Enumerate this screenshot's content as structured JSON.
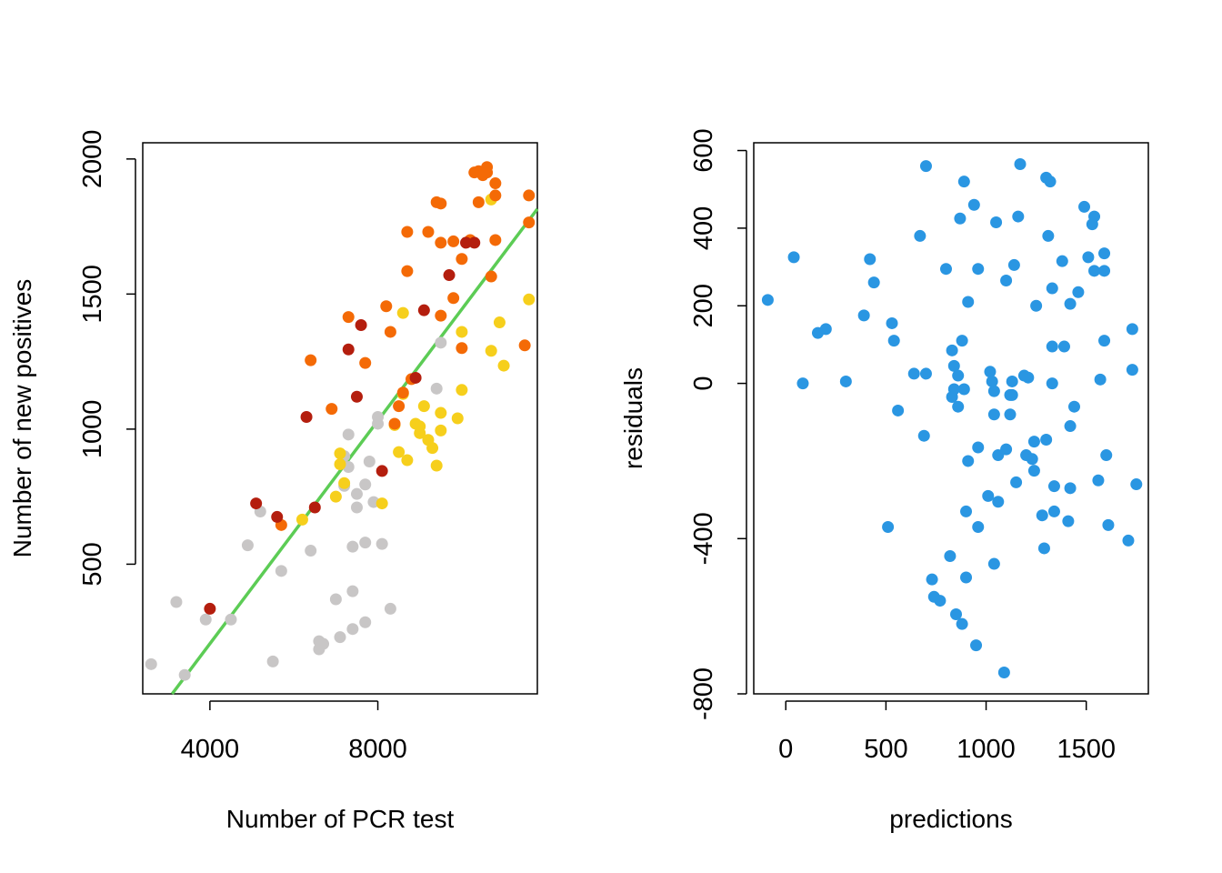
{
  "chart_data": [
    {
      "type": "scatter",
      "title": "",
      "xlabel": "Number of PCR test",
      "ylabel": "Number of new positives",
      "xlim": [
        2400,
        11800
      ],
      "ylim": [
        20,
        2060
      ],
      "x_ticks": [
        4000,
        8000
      ],
      "y_ticks": [
        500,
        1000,
        1500,
        2000
      ],
      "x_tick_labels": [
        "4000",
        "8000"
      ],
      "y_tick_labels": [
        "500",
        "1000",
        "1500",
        "2000"
      ],
      "grid": false,
      "legend": "none",
      "fit_line": {
        "color": "#5ccc55",
        "from": [
          3100,
          20
        ],
        "to": [
          11800,
          1815
        ]
      },
      "series": [
        {
          "color": "#c8c6c6",
          "points": [
            [
              2600,
              130
            ],
            [
              3200,
              360
            ],
            [
              3400,
              90
            ],
            [
              3900,
              295
            ],
            [
              4500,
              295
            ],
            [
              4900,
              570
            ],
            [
              5200,
              695
            ],
            [
              5500,
              140
            ],
            [
              5700,
              475
            ],
            [
              6400,
              550
            ],
            [
              6600,
              215
            ],
            [
              6600,
              185
            ],
            [
              6700,
              205
            ],
            [
              7000,
              370
            ],
            [
              7100,
              230
            ],
            [
              7200,
              900
            ],
            [
              7200,
              790
            ],
            [
              7300,
              980
            ],
            [
              7300,
              860
            ],
            [
              7400,
              260
            ],
            [
              7400,
              565
            ],
            [
              7400,
              400
            ],
            [
              7500,
              710
            ],
            [
              7700,
              285
            ],
            [
              7700,
              580
            ],
            [
              7700,
              795
            ],
            [
              7900,
              730
            ],
            [
              8000,
              1045
            ],
            [
              8100,
              575
            ],
            [
              8300,
              335
            ],
            [
              9400,
              1150
            ],
            [
              9500,
              1320
            ],
            [
              8000,
              1020
            ],
            [
              7800,
              880
            ],
            [
              7500,
              760
            ]
          ]
        },
        {
          "color": "#f6cf1c",
          "points": [
            [
              6200,
              665
            ],
            [
              7000,
              750
            ],
            [
              7100,
              910
            ],
            [
              7200,
              800
            ],
            [
              8100,
              725
            ],
            [
              8400,
              1015
            ],
            [
              8500,
              915
            ],
            [
              8600,
              1430
            ],
            [
              8700,
              885
            ],
            [
              8900,
              1020
            ],
            [
              9000,
              985
            ],
            [
              9000,
              1010
            ],
            [
              9100,
              1085
            ],
            [
              9300,
              930
            ],
            [
              9400,
              865
            ],
            [
              9500,
              1060
            ],
            [
              9500,
              995
            ],
            [
              9900,
              1040
            ],
            [
              10000,
              1145
            ],
            [
              10000,
              1360
            ],
            [
              10700,
              1290
            ],
            [
              10700,
              1850
            ],
            [
              10900,
              1395
            ],
            [
              11000,
              1235
            ],
            [
              11600,
              1480
            ],
            [
              8600,
              1130
            ],
            [
              9200,
              960
            ],
            [
              7100,
              870
            ]
          ]
        },
        {
          "color": "#f46a06",
          "points": [
            [
              5700,
              645
            ],
            [
              6400,
              1255
            ],
            [
              6900,
              1075
            ],
            [
              7300,
              1415
            ],
            [
              7700,
              1245
            ],
            [
              8200,
              1455
            ],
            [
              8300,
              1360
            ],
            [
              8400,
              1020
            ],
            [
              8500,
              1085
            ],
            [
              8600,
              1135
            ],
            [
              8700,
              1585
            ],
            [
              8700,
              1730
            ],
            [
              8800,
              1185
            ],
            [
              9200,
              1730
            ],
            [
              9400,
              1840
            ],
            [
              9500,
              1835
            ],
            [
              9500,
              1690
            ],
            [
              9500,
              1420
            ],
            [
              9800,
              1695
            ],
            [
              9800,
              1485
            ],
            [
              10000,
              1300
            ],
            [
              10000,
              1630
            ],
            [
              10200,
              1700
            ],
            [
              10300,
              1950
            ],
            [
              10400,
              1955
            ],
            [
              10400,
              1840
            ],
            [
              10500,
              1940
            ],
            [
              10600,
              1950
            ],
            [
              10600,
              1970
            ],
            [
              10700,
              1565
            ],
            [
              10800,
              1910
            ],
            [
              10800,
              1865
            ],
            [
              10800,
              1700
            ],
            [
              11600,
              1865
            ],
            [
              11600,
              1765
            ],
            [
              11500,
              1310
            ]
          ]
        },
        {
          "color": "#b41e0e",
          "points": [
            [
              4000,
              335
            ],
            [
              5100,
              725
            ],
            [
              5600,
              675
            ],
            [
              6300,
              1045
            ],
            [
              6500,
              710
            ],
            [
              7300,
              1295
            ],
            [
              7500,
              1120
            ],
            [
              7600,
              1385
            ],
            [
              8100,
              845
            ],
            [
              8900,
              1190
            ],
            [
              9100,
              1440
            ],
            [
              9700,
              1570
            ],
            [
              10100,
              1690
            ],
            [
              10300,
              1690
            ]
          ]
        }
      ]
    },
    {
      "type": "scatter",
      "title": "",
      "xlabel": "predictions",
      "ylabel": "residuals",
      "xlim": [
        -160,
        1810
      ],
      "ylim": [
        -800,
        620
      ],
      "x_ticks": [
        0,
        500,
        1000,
        1500
      ],
      "y_ticks": [
        -800,
        -400,
        0,
        200,
        400,
        600
      ],
      "x_tick_labels": [
        "0",
        "500",
        "1000",
        "1500"
      ],
      "y_tick_labels": [
        "-800",
        "-400",
        "0",
        "200",
        "400",
        "600"
      ],
      "grid": false,
      "legend": "none",
      "series": [
        {
          "color": "#2a96e2",
          "points": [
            [
              -90,
              215
            ],
            [
              40,
              325
            ],
            [
              85,
              0
            ],
            [
              160,
              130
            ],
            [
              200,
              140
            ],
            [
              300,
              5
            ],
            [
              390,
              175
            ],
            [
              420,
              320
            ],
            [
              440,
              260
            ],
            [
              510,
              -370
            ],
            [
              530,
              155
            ],
            [
              540,
              110
            ],
            [
              560,
              -70
            ],
            [
              640,
              25
            ],
            [
              670,
              380
            ],
            [
              690,
              -135
            ],
            [
              700,
              560
            ],
            [
              700,
              25
            ],
            [
              730,
              -505
            ],
            [
              740,
              -550
            ],
            [
              770,
              -560
            ],
            [
              800,
              295
            ],
            [
              820,
              -445
            ],
            [
              830,
              -35
            ],
            [
              830,
              85
            ],
            [
              840,
              -15
            ],
            [
              840,
              45
            ],
            [
              850,
              -595
            ],
            [
              860,
              20
            ],
            [
              860,
              -60
            ],
            [
              870,
              425
            ],
            [
              880,
              110
            ],
            [
              880,
              -620
            ],
            [
              890,
              -15
            ],
            [
              890,
              520
            ],
            [
              900,
              -330
            ],
            [
              900,
              -500
            ],
            [
              910,
              -200
            ],
            [
              910,
              210
            ],
            [
              940,
              460
            ],
            [
              950,
              -675
            ],
            [
              960,
              295
            ],
            [
              960,
              -370
            ],
            [
              960,
              -165
            ],
            [
              1010,
              -290
            ],
            [
              1020,
              30
            ],
            [
              1030,
              5
            ],
            [
              1040,
              -80
            ],
            [
              1040,
              -465
            ],
            [
              1040,
              -20
            ],
            [
              1050,
              415
            ],
            [
              1060,
              -305
            ],
            [
              1060,
              -185
            ],
            [
              1090,
              -745
            ],
            [
              1100,
              -170
            ],
            [
              1100,
              265
            ],
            [
              1120,
              -30
            ],
            [
              1120,
              -80
            ],
            [
              1130,
              -30
            ],
            [
              1130,
              5
            ],
            [
              1140,
              305
            ],
            [
              1150,
              -255
            ],
            [
              1160,
              430
            ],
            [
              1170,
              565
            ],
            [
              1190,
              20
            ],
            [
              1200,
              -185
            ],
            [
              1210,
              15
            ],
            [
              1230,
              -195
            ],
            [
              1240,
              -150
            ],
            [
              1240,
              -225
            ],
            [
              1250,
              200
            ],
            [
              1280,
              -340
            ],
            [
              1290,
              -425
            ],
            [
              1300,
              -145
            ],
            [
              1300,
              530
            ],
            [
              1310,
              380
            ],
            [
              1320,
              520
            ],
            [
              1330,
              245
            ],
            [
              1330,
              0
            ],
            [
              1330,
              95
            ],
            [
              1340,
              -265
            ],
            [
              1340,
              -330
            ],
            [
              1380,
              315
            ],
            [
              1390,
              95
            ],
            [
              1410,
              -355
            ],
            [
              1420,
              -110
            ],
            [
              1420,
              205
            ],
            [
              1420,
              -270
            ],
            [
              1440,
              -60
            ],
            [
              1460,
              235
            ],
            [
              1490,
              455
            ],
            [
              1510,
              325
            ],
            [
              1530,
              410
            ],
            [
              1540,
              430
            ],
            [
              1540,
              290
            ],
            [
              1560,
              -250
            ],
            [
              1570,
              10
            ],
            [
              1590,
              290
            ],
            [
              1590,
              335
            ],
            [
              1590,
              110
            ],
            [
              1600,
              -185
            ],
            [
              1610,
              -365
            ],
            [
              1710,
              -405
            ],
            [
              1730,
              35
            ],
            [
              1730,
              140
            ],
            [
              1750,
              -260
            ]
          ]
        }
      ]
    }
  ]
}
